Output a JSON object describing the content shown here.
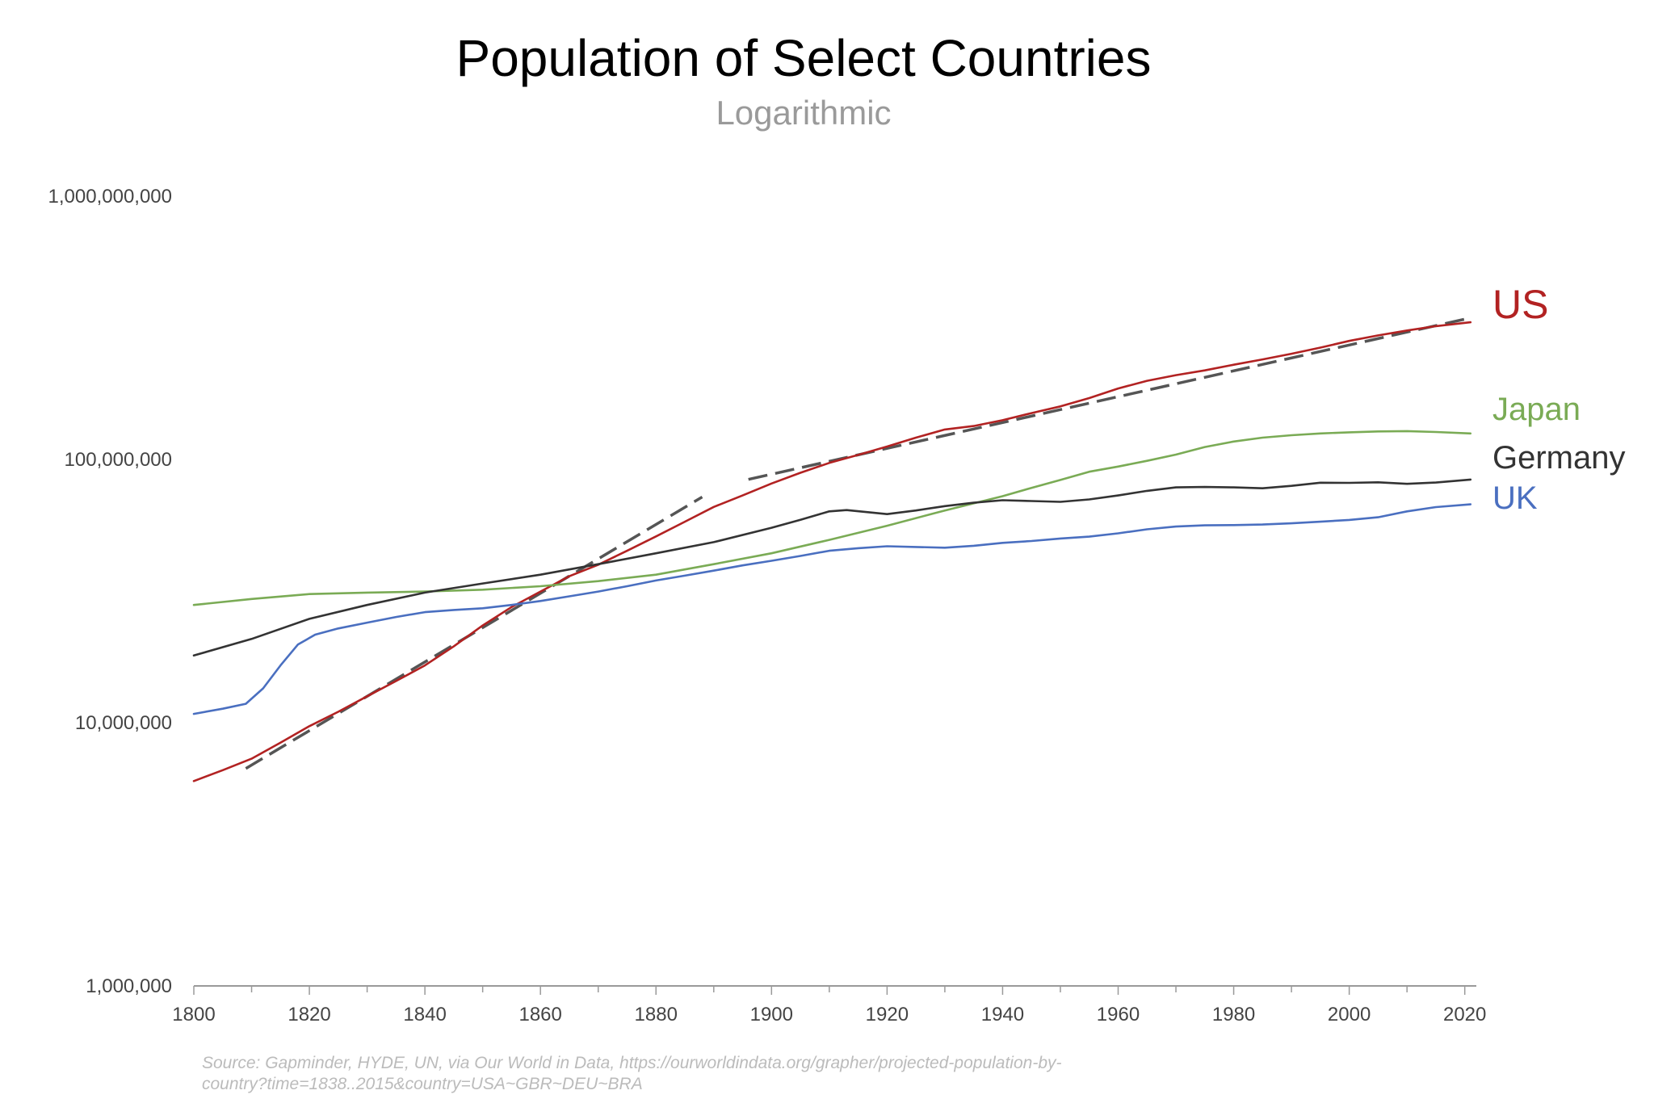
{
  "chart_data": {
    "type": "line",
    "title": "Population of Select Countries",
    "subtitle": "Logarithmic",
    "y_scale": "log",
    "xlim": [
      1800,
      2022
    ],
    "ylim": [
      1000000,
      1000000000
    ],
    "x_ticks": [
      1800,
      1820,
      1840,
      1860,
      1880,
      1900,
      1920,
      1940,
      1960,
      1980,
      2000,
      2020
    ],
    "x_tick_labels": [
      "1800",
      "1820",
      "1840",
      "1860",
      "1880",
      "1900",
      "1920",
      "1940",
      "1960",
      "1980",
      "2000",
      "2020"
    ],
    "y_ticks": [
      1000000,
      10000000,
      100000000,
      1000000000
    ],
    "y_tick_labels": [
      "1,000,000",
      "10,000,000",
      "100,000,000",
      "1,000,000,000"
    ],
    "grid": false,
    "legend": "direct labels at right end of lines",
    "series": [
      {
        "name": "US",
        "color": "#b22222",
        "points": [
          [
            1800,
            6000000
          ],
          [
            1805,
            6600000
          ],
          [
            1810,
            7300000
          ],
          [
            1815,
            8400000
          ],
          [
            1820,
            9700000
          ],
          [
            1825,
            11000000
          ],
          [
            1830,
            12600000
          ],
          [
            1835,
            14400000
          ],
          [
            1840,
            16500000
          ],
          [
            1845,
            19500000
          ],
          [
            1850,
            23400000
          ],
          [
            1855,
            27500000
          ],
          [
            1860,
            31500000
          ],
          [
            1865,
            36000000
          ],
          [
            1870,
            39800000
          ],
          [
            1875,
            45000000
          ],
          [
            1880,
            51000000
          ],
          [
            1885,
            58000000
          ],
          [
            1890,
            66000000
          ],
          [
            1895,
            73000000
          ],
          [
            1900,
            81000000
          ],
          [
            1905,
            89000000
          ],
          [
            1910,
            97000000
          ],
          [
            1915,
            104000000
          ],
          [
            1920,
            112000000
          ],
          [
            1925,
            121000000
          ],
          [
            1930,
            130000000
          ],
          [
            1935,
            134000000
          ],
          [
            1940,
            141000000
          ],
          [
            1945,
            150000000
          ],
          [
            1950,
            159000000
          ],
          [
            1955,
            171000000
          ],
          [
            1960,
            186000000
          ],
          [
            1965,
            199000000
          ],
          [
            1970,
            209000000
          ],
          [
            1975,
            218000000
          ],
          [
            1980,
            229000000
          ],
          [
            1985,
            240000000
          ],
          [
            1990,
            252000000
          ],
          [
            1995,
            266000000
          ],
          [
            2000,
            282000000
          ],
          [
            2005,
            296000000
          ],
          [
            2010,
            309000000
          ],
          [
            2015,
            321000000
          ],
          [
            2021,
            332000000
          ]
        ]
      },
      {
        "name": "Japan",
        "color": "#7aab55",
        "points": [
          [
            1800,
            28000000
          ],
          [
            1810,
            29500000
          ],
          [
            1820,
            30800000
          ],
          [
            1830,
            31200000
          ],
          [
            1840,
            31500000
          ],
          [
            1850,
            32000000
          ],
          [
            1860,
            33000000
          ],
          [
            1870,
            34500000
          ],
          [
            1880,
            36500000
          ],
          [
            1890,
            40000000
          ],
          [
            1900,
            44000000
          ],
          [
            1910,
            49500000
          ],
          [
            1920,
            56000000
          ],
          [
            1930,
            64000000
          ],
          [
            1940,
            72500000
          ],
          [
            1945,
            78000000
          ],
          [
            1950,
            83600000
          ],
          [
            1955,
            89800000
          ],
          [
            1960,
            94000000
          ],
          [
            1965,
            98800000
          ],
          [
            1970,
            104300000
          ],
          [
            1975,
            111500000
          ],
          [
            1980,
            117000000
          ],
          [
            1985,
            121000000
          ],
          [
            1990,
            123600000
          ],
          [
            1995,
            125500000
          ],
          [
            2000,
            126800000
          ],
          [
            2005,
            127800000
          ],
          [
            2010,
            128100000
          ],
          [
            2015,
            127100000
          ],
          [
            2021,
            125500000
          ]
        ]
      },
      {
        "name": "Germany",
        "color": "#333333",
        "points": [
          [
            1800,
            18000000
          ],
          [
            1810,
            20800000
          ],
          [
            1820,
            24800000
          ],
          [
            1830,
            28000000
          ],
          [
            1840,
            31200000
          ],
          [
            1850,
            33800000
          ],
          [
            1860,
            36500000
          ],
          [
            1870,
            40000000
          ],
          [
            1880,
            44000000
          ],
          [
            1890,
            48500000
          ],
          [
            1900,
            55000000
          ],
          [
            1905,
            59000000
          ],
          [
            1910,
            63500000
          ],
          [
            1913,
            64200000
          ],
          [
            1920,
            62000000
          ],
          [
            1925,
            64000000
          ],
          [
            1930,
            66500000
          ],
          [
            1935,
            68500000
          ],
          [
            1940,
            70000000
          ],
          [
            1945,
            69500000
          ],
          [
            1950,
            69000000
          ],
          [
            1955,
            70500000
          ],
          [
            1960,
            73000000
          ],
          [
            1965,
            76000000
          ],
          [
            1970,
            78300000
          ],
          [
            1975,
            78600000
          ],
          [
            1980,
            78300000
          ],
          [
            1985,
            77700000
          ],
          [
            1990,
            79400000
          ],
          [
            1995,
            81600000
          ],
          [
            2000,
            81500000
          ],
          [
            2005,
            81900000
          ],
          [
            2010,
            80800000
          ],
          [
            2015,
            81700000
          ],
          [
            2021,
            83900000
          ]
        ]
      },
      {
        "name": "UK",
        "color": "#4a6fc0",
        "points": [
          [
            1800,
            10800000
          ],
          [
            1805,
            11300000
          ],
          [
            1809,
            11800000
          ],
          [
            1812,
            13500000
          ],
          [
            1815,
            16500000
          ],
          [
            1818,
            19800000
          ],
          [
            1821,
            21600000
          ],
          [
            1825,
            22800000
          ],
          [
            1830,
            24000000
          ],
          [
            1835,
            25200000
          ],
          [
            1840,
            26300000
          ],
          [
            1845,
            26800000
          ],
          [
            1850,
            27200000
          ],
          [
            1855,
            28000000
          ],
          [
            1860,
            29000000
          ],
          [
            1865,
            30200000
          ],
          [
            1870,
            31500000
          ],
          [
            1875,
            33000000
          ],
          [
            1880,
            34700000
          ],
          [
            1885,
            36200000
          ],
          [
            1890,
            37800000
          ],
          [
            1895,
            39600000
          ],
          [
            1900,
            41200000
          ],
          [
            1905,
            43000000
          ],
          [
            1910,
            45000000
          ],
          [
            1915,
            46000000
          ],
          [
            1920,
            46800000
          ],
          [
            1925,
            46500000
          ],
          [
            1930,
            46200000
          ],
          [
            1935,
            47000000
          ],
          [
            1940,
            48200000
          ],
          [
            1945,
            49000000
          ],
          [
            1950,
            50100000
          ],
          [
            1955,
            50900000
          ],
          [
            1960,
            52400000
          ],
          [
            1965,
            54300000
          ],
          [
            1970,
            55600000
          ],
          [
            1975,
            56200000
          ],
          [
            1980,
            56300000
          ],
          [
            1985,
            56600000
          ],
          [
            1990,
            57200000
          ],
          [
            1995,
            58000000
          ],
          [
            2000,
            58900000
          ],
          [
            2005,
            60300000
          ],
          [
            2010,
            63500000
          ],
          [
            2015,
            65900000
          ],
          [
            2021,
            67500000
          ]
        ]
      }
    ],
    "trend_lines": [
      {
        "style": "dashed",
        "color": "#555555",
        "points": [
          [
            1809,
            6700000
          ],
          [
            1888,
            72000000
          ]
        ]
      },
      {
        "style": "dashed",
        "color": "#555555",
        "points": [
          [
            1896,
            84000000
          ],
          [
            2021,
            345000000
          ]
        ]
      }
    ],
    "source": "Source: Gapminder, HYDE, UN, via Our World in Data, https://ourworldindata.org/grapher/projected-population-by-country?time=1838..2015&country=USA~GBR~DEU~BRA",
    "source_lines": [
      "Source: Gapminder, HYDE, UN, via Our World in Data, https://ourworldindata.org/grapher/projected-population-by-",
      "country?time=1838..2015&country=USA~GBR~DEU~BRA"
    ]
  }
}
